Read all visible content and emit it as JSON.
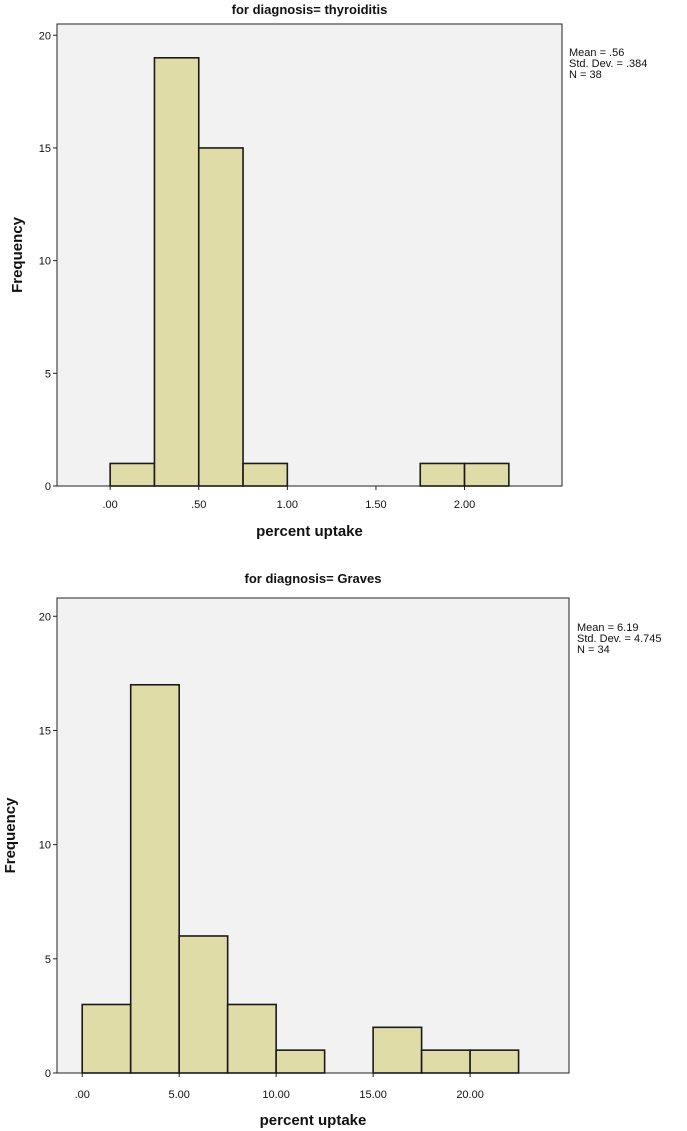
{
  "chart_data": [
    {
      "type": "bar",
      "subtype": "histogram",
      "title": "for diagnosis= thyroiditis",
      "xlabel": "percent uptake",
      "ylabel": "Frequency",
      "bin_width": 0.25,
      "bins": [
        {
          "x0": 0.0,
          "x1": 0.25,
          "count": 1
        },
        {
          "x0": 0.25,
          "x1": 0.5,
          "count": 19
        },
        {
          "x0": 0.5,
          "x1": 0.75,
          "count": 15
        },
        {
          "x0": 0.75,
          "x1": 1.0,
          "count": 1
        },
        {
          "x0": 1.75,
          "x1": 2.0,
          "count": 1
        },
        {
          "x0": 2.0,
          "x1": 2.25,
          "count": 1
        }
      ],
      "xlim": [
        -0.3,
        2.55
      ],
      "ylim": [
        0,
        20.5
      ],
      "xticks": [
        0,
        0.5,
        1.0,
        1.5,
        2.0
      ],
      "xtick_labels": [
        ".00",
        ".50",
        "1.00",
        "1.50",
        "2.00"
      ],
      "yticks": [
        0,
        5,
        10,
        15,
        20
      ],
      "ytick_labels": [
        "0",
        "5",
        "10",
        "15",
        "20"
      ],
      "stats": [
        "Mean = .56",
        "Std. Dev. = .384",
        "N = 38"
      ],
      "grid": false,
      "bar_color": "#e0dca8",
      "bar_edge_color": "#1a1a1a",
      "plot_background": "#f2f2f2"
    },
    {
      "type": "bar",
      "subtype": "histogram",
      "title": "for diagnosis= Graves",
      "xlabel": "percent uptake",
      "ylabel": "Frequency",
      "bin_width": 2.5,
      "bins": [
        {
          "x0": 0.0,
          "x1": 2.5,
          "count": 3
        },
        {
          "x0": 2.5,
          "x1": 5.0,
          "count": 17
        },
        {
          "x0": 5.0,
          "x1": 7.5,
          "count": 6
        },
        {
          "x0": 7.5,
          "x1": 10.0,
          "count": 3
        },
        {
          "x0": 10.0,
          "x1": 12.5,
          "count": 1
        },
        {
          "x0": 15.0,
          "x1": 17.5,
          "count": 2
        },
        {
          "x0": 17.5,
          "x1": 20.0,
          "count": 1
        },
        {
          "x0": 20.0,
          "x1": 22.5,
          "count": 1
        }
      ],
      "xlim": [
        -1.3,
        25.1
      ],
      "ylim": [
        0,
        20.8
      ],
      "xticks": [
        0,
        5,
        10,
        15,
        20
      ],
      "xtick_labels": [
        ".00",
        "5.00",
        "10.00",
        "15.00",
        "20.00"
      ],
      "yticks": [
        0,
        5,
        10,
        15,
        20
      ],
      "ytick_labels": [
        "0",
        "5",
        "10",
        "15",
        "20"
      ],
      "stats": [
        "Mean = 6.19",
        "Std. Dev. = 4.745",
        "N = 34"
      ],
      "grid": false,
      "bar_color": "#e0dca8",
      "bar_edge_color": "#1a1a1a",
      "plot_background": "#f2f2f2"
    }
  ]
}
